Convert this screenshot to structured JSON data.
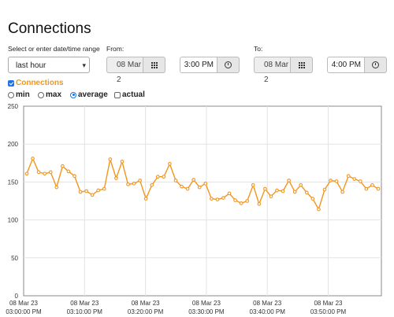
{
  "page": {
    "title": "Connections"
  },
  "filters": {
    "range_label": "Select or enter date/time range",
    "range_value": "last hour",
    "from_label": "From:",
    "from_date": "08 Mar 2",
    "from_time": "3:00 PM",
    "to_label": "To:",
    "to_date": "08 Mar 2",
    "to_time": "4:00 PM"
  },
  "options": {
    "connections_label": "Connections",
    "connections_checked": true,
    "min_label": "min",
    "max_label": "max",
    "average_label": "average",
    "actual_label": "actual",
    "selected": "average",
    "actual_checked": false
  },
  "colors": {
    "series": "#f0961e",
    "link": "#f0961e",
    "accent": "#1a73e8"
  },
  "icons": {
    "calendar": "calendar-grid-icon",
    "time": "clock-icon",
    "dropdown": "chevron-down-icon"
  },
  "chart_data": {
    "type": "line",
    "ylim": [
      0,
      250
    ],
    "yticks": [
      0,
      50,
      100,
      150,
      200,
      250
    ],
    "xticks": [
      {
        "t": 0,
        "date": "08 Mar 23",
        "time": "03:00:00 PM"
      },
      {
        "t": 10,
        "date": "08 Mar 23",
        "time": "03:10:00 PM"
      },
      {
        "t": 20,
        "date": "08 Mar 23",
        "time": "03:20:00 PM"
      },
      {
        "t": 30,
        "date": "08 Mar 23",
        "time": "03:30:00 PM"
      },
      {
        "t": 40,
        "date": "08 Mar 23",
        "time": "03:40:00 PM"
      },
      {
        "t": 50,
        "date": "08 Mar 23",
        "time": "03:50:00 PM"
      }
    ],
    "grid": true,
    "series": [
      {
        "x": [
          0,
          1,
          2,
          3,
          4,
          5,
          6,
          7,
          8,
          9,
          10,
          11,
          12,
          13,
          14,
          15,
          16,
          17,
          18,
          19,
          20,
          21,
          22,
          23,
          24,
          25,
          26,
          27,
          28,
          29,
          30,
          31,
          32,
          33,
          34,
          35,
          36,
          37,
          38,
          39,
          40,
          41,
          42,
          43,
          44,
          45,
          46,
          47,
          48,
          49,
          50,
          51,
          52,
          53,
          54,
          55,
          56,
          57,
          58,
          59
        ],
        "values": [
          161,
          181,
          163,
          161,
          163,
          143,
          171,
          164,
          158,
          137,
          138,
          133,
          139,
          141,
          180,
          155,
          177,
          147,
          148,
          152,
          128,
          146,
          157,
          157,
          174,
          152,
          144,
          141,
          153,
          143,
          148,
          128,
          127,
          129,
          135,
          126,
          122,
          125,
          146,
          121,
          141,
          131,
          139,
          138,
          152,
          137,
          146,
          136,
          128,
          114,
          140,
          152,
          151,
          137,
          158,
          154,
          151,
          141,
          146,
          141
        ]
      }
    ]
  }
}
